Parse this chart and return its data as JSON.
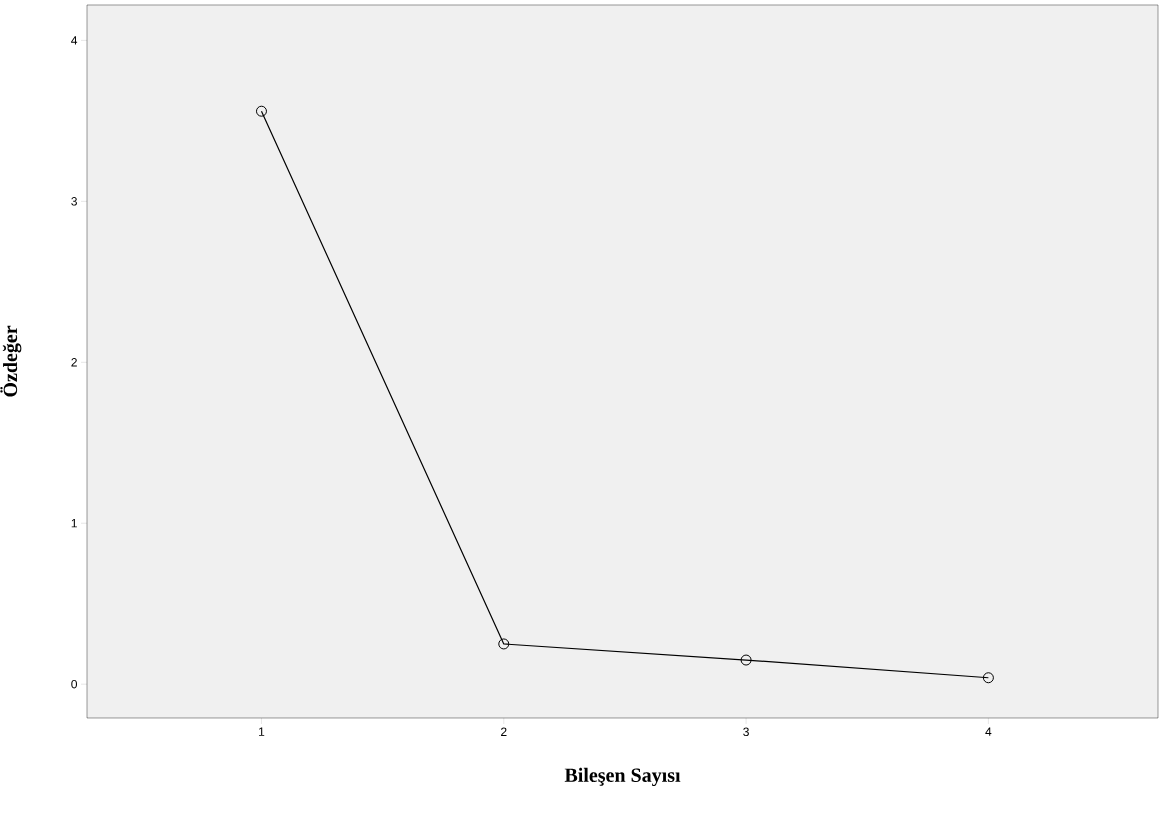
{
  "chart_data": {
    "type": "line",
    "xlabel": "Bileşen Sayısı",
    "ylabel": "Özdeğer",
    "x": [
      1,
      2,
      3,
      4
    ],
    "values": [
      3.56,
      0.25,
      0.15,
      0.04
    ],
    "color": "#000000",
    "marker": "circle",
    "line_style": "solid",
    "xlim": [
      0.28,
      4.7
    ],
    "ylim": [
      -0.21,
      4.22
    ],
    "xticks": [
      1,
      2,
      3,
      4
    ],
    "yticks": [
      0,
      1,
      2,
      3,
      4
    ]
  }
}
